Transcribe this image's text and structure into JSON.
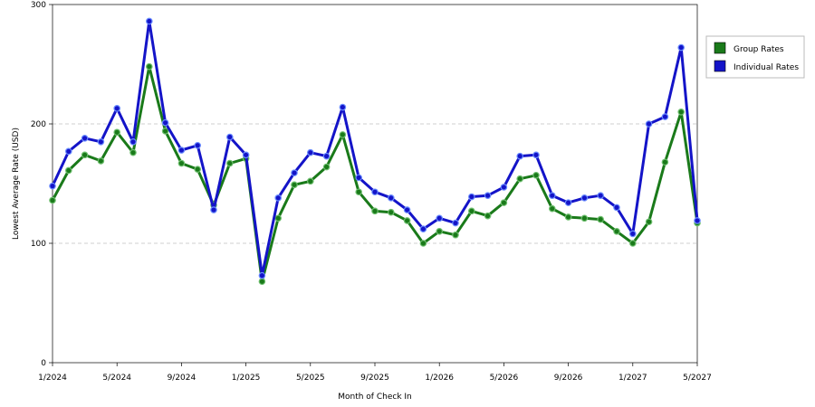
{
  "chart_data": {
    "type": "line",
    "xlabel": "Month of Check In",
    "ylabel": "Lowest Average Rate (USD)",
    "ylim": [
      0,
      300
    ],
    "y_ticks": [
      0,
      100,
      200,
      300
    ],
    "x_tick_labels": [
      "1/2024",
      "5/2024",
      "9/2024",
      "1/2025",
      "5/2025",
      "9/2025",
      "1/2026",
      "5/2026",
      "9/2026",
      "1/2027",
      "5/2027"
    ],
    "x": [
      "1/2024",
      "2/2024",
      "3/2024",
      "4/2024",
      "5/2024",
      "6/2024",
      "7/2024",
      "8/2024",
      "9/2024",
      "10/2024",
      "11/2024",
      "12/2024",
      "1/2025",
      "2/2025",
      "3/2025",
      "4/2025",
      "5/2025",
      "6/2025",
      "7/2025",
      "8/2025",
      "9/2025",
      "10/2025",
      "11/2025",
      "12/2025",
      "1/2026",
      "2/2026",
      "3/2026",
      "4/2026",
      "5/2026",
      "6/2026",
      "7/2026",
      "8/2026",
      "9/2026",
      "10/2026",
      "11/2026",
      "12/2026",
      "1/2027",
      "2/2027",
      "3/2027",
      "4/2027",
      "5/2027"
    ],
    "grid": "horizontal dashed at 100 and 200",
    "legend_position": "right",
    "series": [
      {
        "name": "Group Rates",
        "color": "#1a7a1a",
        "values": [
          136,
          161,
          174,
          169,
          193,
          176,
          248,
          194,
          167,
          162,
          132,
          167,
          171,
          68,
          121,
          149,
          152,
          164,
          191,
          143,
          127,
          126,
          119,
          100,
          110,
          107,
          127,
          123,
          134,
          154,
          157,
          129,
          122,
          121,
          120,
          110,
          100,
          118,
          168,
          210,
          117
        ]
      },
      {
        "name": "Individual Rates",
        "color": "#1414c8",
        "values": [
          148,
          177,
          188,
          185,
          213,
          185,
          286,
          201,
          178,
          182,
          128,
          189,
          174,
          73,
          138,
          159,
          176,
          173,
          214,
          155,
          143,
          138,
          128,
          112,
          121,
          117,
          139,
          140,
          147,
          173,
          174,
          140,
          134,
          138,
          140,
          130,
          108,
          200,
          206,
          264,
          119
        ]
      }
    ]
  }
}
